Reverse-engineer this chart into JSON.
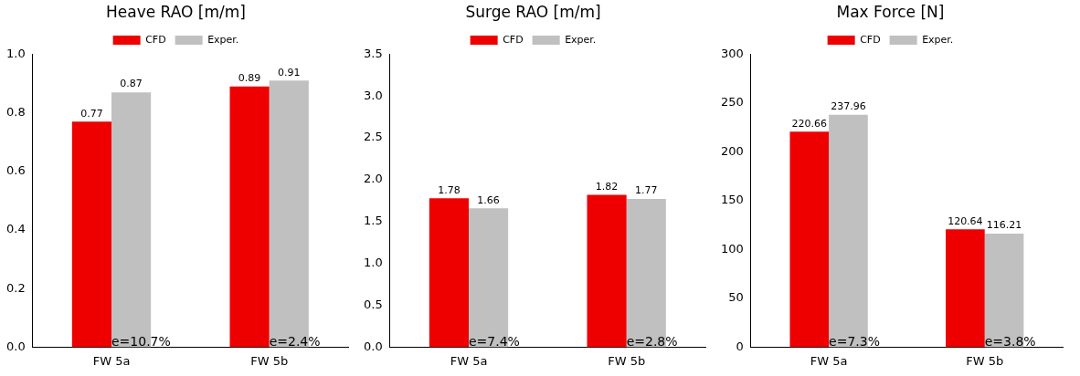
{
  "chart_data": [
    {
      "type": "bar",
      "title": "Heave RAO [m/m]",
      "categories": [
        "FW 5a",
        "FW 5b"
      ],
      "series": [
        {
          "name": "CFD",
          "color": "#ee0000",
          "values": [
            0.77,
            0.89
          ]
        },
        {
          "name": "Exper.",
          "color": "#c0c0c0",
          "values": [
            0.87,
            0.91
          ]
        }
      ],
      "ylim": [
        0,
        1
      ],
      "yticks": [
        {
          "value": 0,
          "label": "0.0"
        },
        {
          "value": 0.2,
          "label": "0.2"
        },
        {
          "value": 0.4,
          "label": "0.4"
        },
        {
          "value": 0.6,
          "label": "0.6"
        },
        {
          "value": 0.8,
          "label": "0.8"
        },
        {
          "value": 1,
          "label": "1.0"
        }
      ],
      "data_labels": true,
      "legend": "top",
      "grid": false,
      "annotations": [
        {
          "text": "e=10.7%",
          "x": "FW 5a",
          "y": 0
        },
        {
          "text": "e=2.4%",
          "x": "FW 5b",
          "y": 0
        }
      ]
    },
    {
      "type": "bar",
      "title": "Surge RAO [m/m]",
      "categories": [
        "FW 5a",
        "FW 5b"
      ],
      "series": [
        {
          "name": "CFD",
          "color": "#ee0000",
          "values": [
            1.78,
            1.82
          ]
        },
        {
          "name": "Exper.",
          "color": "#c0c0c0",
          "values": [
            1.66,
            1.77
          ]
        }
      ],
      "ylim": [
        0,
        3.5
      ],
      "yticks": [
        {
          "value": 0,
          "label": "0.0"
        },
        {
          "value": 0.5,
          "label": "0.5"
        },
        {
          "value": 1,
          "label": "1.0"
        },
        {
          "value": 1.5,
          "label": "1.5"
        },
        {
          "value": 2,
          "label": "2.0"
        },
        {
          "value": 2.5,
          "label": "2.5"
        },
        {
          "value": 3,
          "label": "3.0"
        },
        {
          "value": 3.5,
          "label": "3.5"
        }
      ],
      "data_labels": true,
      "legend": "top",
      "grid": false,
      "annotations": [
        {
          "text": "e=7.4%",
          "x": "FW 5a",
          "y": 0
        },
        {
          "text": "e=2.8%",
          "x": "FW 5b",
          "y": 0
        }
      ]
    },
    {
      "type": "bar",
      "title": "Max Force [N]",
      "categories": [
        "FW 5a",
        "FW 5b"
      ],
      "series": [
        {
          "name": "CFD",
          "color": "#ee0000",
          "values": [
            220.66,
            120.64
          ]
        },
        {
          "name": "Exper.",
          "color": "#c0c0c0",
          "values": [
            237.96,
            116.21
          ]
        }
      ],
      "ylim": [
        0,
        300
      ],
      "yticks": [
        0,
        50,
        100,
        150,
        200,
        250,
        300
      ],
      "data_labels": true,
      "legend": "top",
      "grid": false,
      "annotations": [
        {
          "text": "e=7.3%",
          "x": "FW 5a",
          "y": 0
        },
        {
          "text": "e=3.8%",
          "x": "FW 5b",
          "y": 0
        }
      ]
    }
  ]
}
